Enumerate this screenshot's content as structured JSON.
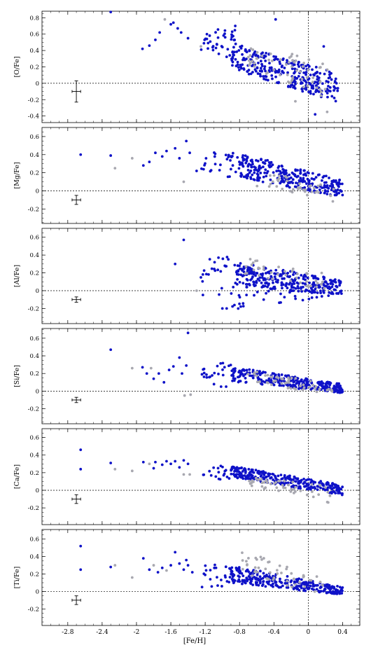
{
  "chart_data": {
    "type": "scatter",
    "xlabel": "[Fe/H]",
    "xlim": [
      -3.1,
      0.6
    ],
    "x_ticks": [
      "-2.8",
      "-2.4",
      "-2",
      "-1.6",
      "-1.2",
      "-0.8",
      "-0.4",
      "0",
      "0.4"
    ],
    "reference_lines": {
      "x": 0,
      "y": 0
    },
    "series_colors": {
      "main": "#0f12c8",
      "secondary": "#a8a8b0"
    },
    "grid": false,
    "panels": [
      {
        "ylabel": "[O/Fe]",
        "ylim": [
          -0.48,
          0.88
        ],
        "y_ticks": [
          "-0.4",
          "-0.2",
          "0",
          "0.2",
          "0.4",
          "0.6",
          "0.8"
        ],
        "error_bar": {
          "x": -2.7,
          "y": -0.1,
          "dx": 0.05,
          "dy": 0.13
        }
      },
      {
        "ylabel": "[Mg/Fe]",
        "ylim": [
          -0.36,
          0.7
        ],
        "y_ticks": [
          "-0.2",
          "0",
          "0.2",
          "0.4",
          "0.6"
        ],
        "error_bar": {
          "x": -2.7,
          "y": -0.1,
          "dx": 0.05,
          "dy": 0.05
        }
      },
      {
        "ylabel": "[Al/Fe]",
        "ylim": [
          -0.37,
          0.7
        ],
        "y_ticks": [
          "-0.2",
          "0",
          "0.2",
          "0.4",
          "0.6"
        ],
        "error_bar": {
          "x": -2.7,
          "y": -0.1,
          "dx": 0.05,
          "dy": 0.03
        }
      },
      {
        "ylabel": "[Si/Fe]",
        "ylim": [
          -0.37,
          0.71
        ],
        "y_ticks": [
          "-0.2",
          "0",
          "0.2",
          "0.4",
          "0.6"
        ],
        "error_bar": {
          "x": -2.7,
          "y": -0.1,
          "dx": 0.05,
          "dy": 0.03
        }
      },
      {
        "ylabel": "[Ca/Fe]",
        "ylim": [
          -0.39,
          0.7
        ],
        "y_ticks": [
          "-0.2",
          "0",
          "0.2",
          "0.4",
          "0.6"
        ],
        "error_bar": {
          "x": -2.7,
          "y": -0.1,
          "dx": 0.05,
          "dy": 0.05
        }
      },
      {
        "ylabel": "[Ti/Fe]",
        "ylim": [
          -0.39,
          0.71
        ],
        "y_ticks": [
          "-0.2",
          "0",
          "0.2",
          "0.4",
          "0.6"
        ],
        "error_bar": {
          "x": -2.7,
          "y": -0.1,
          "dx": 0.05,
          "dy": 0.05
        }
      }
    ],
    "clusters": [
      {
        "panel": 0,
        "n": 290,
        "x": [
          -0.9,
          0.35
        ],
        "y0": [
          0.5,
          0.12
        ],
        "y1": [
          0.18,
          -0.24
        ],
        "color": "main"
      },
      {
        "panel": 0,
        "n": 40,
        "x": [
          -1.25,
          -0.85
        ],
        "y": [
          0.3,
          0.66
        ],
        "color": "main"
      },
      {
        "panel": 0,
        "n": 60,
        "x": [
          -0.7,
          0.25
        ],
        "y0": [
          0.45,
          0.3
        ],
        "y1": [
          0.2,
          -0.2
        ],
        "color": "secondary"
      },
      {
        "panel": 1,
        "n": 300,
        "x": [
          -0.8,
          0.4
        ],
        "y0": [
          0.42,
          0.12
        ],
        "y1": [
          0.15,
          -0.08
        ],
        "color": "main"
      },
      {
        "panel": 1,
        "n": 30,
        "x": [
          -1.25,
          -0.8
        ],
        "y": [
          0.15,
          0.45
        ],
        "color": "main"
      },
      {
        "panel": 1,
        "n": 40,
        "x": [
          -0.6,
          0.3
        ],
        "y0": [
          0.25,
          0.05
        ],
        "y1": [
          0.05,
          -0.12
        ],
        "color": "secondary"
      },
      {
        "panel": 2,
        "n": 280,
        "x": [
          -0.85,
          0.4
        ],
        "y0": [
          0.32,
          0.12
        ],
        "y1": [
          0.05,
          -0.05
        ],
        "color": "main"
      },
      {
        "panel": 2,
        "n": 25,
        "x": [
          -1.25,
          -0.85
        ],
        "y": [
          -0.05,
          0.38
        ],
        "color": "main"
      },
      {
        "panel": 2,
        "n": 40,
        "x": [
          -0.9,
          0.35
        ],
        "y0": [
          -0.22,
          -0.05
        ],
        "y1": [
          -0.02,
          0.08
        ],
        "color": "main"
      },
      {
        "panel": 2,
        "n": 40,
        "x": [
          -0.8,
          0.2
        ],
        "y0": [
          0.38,
          0.2
        ],
        "y1": [
          0.2,
          0.0
        ],
        "color": "secondary"
      },
      {
        "panel": 3,
        "n": 280,
        "x": [
          -0.9,
          0.4
        ],
        "y0": [
          0.28,
          0.08
        ],
        "y1": [
          0.1,
          -0.02
        ],
        "color": "main"
      },
      {
        "panel": 3,
        "n": 25,
        "x": [
          -1.25,
          -0.85
        ],
        "y": [
          0.05,
          0.32
        ],
        "color": "main"
      },
      {
        "panel": 3,
        "n": 50,
        "x": [
          -0.8,
          0.3
        ],
        "y0": [
          0.25,
          0.08
        ],
        "y1": [
          0.12,
          -0.05
        ],
        "color": "secondary"
      },
      {
        "panel": 4,
        "n": 290,
        "x": [
          -0.9,
          0.4
        ],
        "y0": [
          0.28,
          0.06
        ],
        "y1": [
          0.15,
          -0.06
        ],
        "color": "main"
      },
      {
        "panel": 4,
        "n": 25,
        "x": [
          -1.25,
          -0.85
        ],
        "y": [
          0.12,
          0.3
        ],
        "color": "main"
      },
      {
        "panel": 4,
        "n": 50,
        "x": [
          -0.7,
          0.3
        ],
        "y0": [
          0.15,
          0.05
        ],
        "y1": [
          0.05,
          -0.16
        ],
        "color": "secondary"
      },
      {
        "panel": 5,
        "n": 290,
        "x": [
          -0.9,
          0.4
        ],
        "y0": [
          0.3,
          0.05
        ],
        "y1": [
          0.1,
          -0.04
        ],
        "color": "main"
      },
      {
        "panel": 5,
        "n": 25,
        "x": [
          -1.25,
          -0.85
        ],
        "y": [
          0.05,
          0.32
        ],
        "color": "main"
      },
      {
        "panel": 5,
        "n": 50,
        "x": [
          -0.8,
          0.2
        ],
        "y0": [
          0.48,
          0.15
        ],
        "y1": [
          0.2,
          -0.05
        ],
        "color": "secondary"
      }
    ],
    "points": [
      {
        "panel": 0,
        "x": -2.3,
        "y": 0.87,
        "c": "main"
      },
      {
        "panel": 0,
        "x": -1.93,
        "y": 0.42,
        "c": "main"
      },
      {
        "panel": 0,
        "x": -1.85,
        "y": 0.46,
        "c": "main"
      },
      {
        "panel": 0,
        "x": -1.78,
        "y": 0.53,
        "c": "main"
      },
      {
        "panel": 0,
        "x": -1.73,
        "y": 0.62,
        "c": "main"
      },
      {
        "panel": 0,
        "x": -1.67,
        "y": 0.78,
        "c": "secondary"
      },
      {
        "panel": 0,
        "x": -1.6,
        "y": 0.72,
        "c": "main"
      },
      {
        "panel": 0,
        "x": -1.57,
        "y": 0.74,
        "c": "main"
      },
      {
        "panel": 0,
        "x": -1.52,
        "y": 0.67,
        "c": "main"
      },
      {
        "panel": 0,
        "x": -1.48,
        "y": 0.62,
        "c": "main"
      },
      {
        "panel": 0,
        "x": -1.4,
        "y": 0.55,
        "c": "main"
      },
      {
        "panel": 0,
        "x": -1.25,
        "y": 0.45,
        "c": "secondary"
      },
      {
        "panel": 0,
        "x": -1.18,
        "y": 0.6,
        "c": "main"
      },
      {
        "panel": 0,
        "x": -0.85,
        "y": 0.7,
        "c": "main"
      },
      {
        "panel": 0,
        "x": -0.38,
        "y": 0.78,
        "c": "main"
      },
      {
        "panel": 0,
        "x": 0.18,
        "y": 0.45,
        "c": "main"
      },
      {
        "panel": 0,
        "x": 0.08,
        "y": -0.38,
        "c": "main"
      },
      {
        "panel": 0,
        "x": -0.15,
        "y": -0.22,
        "c": "secondary"
      },
      {
        "panel": 0,
        "x": 0.22,
        "y": -0.35,
        "c": "secondary"
      },
      {
        "panel": 1,
        "x": -2.65,
        "y": 0.4,
        "c": "main"
      },
      {
        "panel": 1,
        "x": -2.3,
        "y": 0.39,
        "c": "main"
      },
      {
        "panel": 1,
        "x": -2.25,
        "y": 0.25,
        "c": "secondary"
      },
      {
        "panel": 1,
        "x": -2.05,
        "y": 0.36,
        "c": "secondary"
      },
      {
        "panel": 1,
        "x": -1.92,
        "y": 0.28,
        "c": "main"
      },
      {
        "panel": 1,
        "x": -1.85,
        "y": 0.32,
        "c": "main"
      },
      {
        "panel": 1,
        "x": -1.78,
        "y": 0.42,
        "c": "main"
      },
      {
        "panel": 1,
        "x": -1.7,
        "y": 0.38,
        "c": "main"
      },
      {
        "panel": 1,
        "x": -1.65,
        "y": 0.44,
        "c": "main"
      },
      {
        "panel": 1,
        "x": -1.55,
        "y": 0.47,
        "c": "main"
      },
      {
        "panel": 1,
        "x": -1.5,
        "y": 0.36,
        "c": "main"
      },
      {
        "panel": 1,
        "x": -1.45,
        "y": 0.1,
        "c": "secondary"
      },
      {
        "panel": 1,
        "x": -1.42,
        "y": 0.55,
        "c": "main"
      },
      {
        "panel": 1,
        "x": -1.38,
        "y": 0.42,
        "c": "main"
      },
      {
        "panel": 1,
        "x": -1.3,
        "y": 0.22,
        "c": "main"
      },
      {
        "panel": 2,
        "x": -1.45,
        "y": 0.57,
        "c": "main"
      },
      {
        "panel": 2,
        "x": -1.55,
        "y": 0.3,
        "c": "main"
      },
      {
        "panel": 2,
        "x": -1.0,
        "y": -0.2,
        "c": "main"
      },
      {
        "panel": 2,
        "x": -0.95,
        "y": -0.2,
        "c": "main"
      },
      {
        "panel": 2,
        "x": -1.3,
        "y": 0.0,
        "c": "secondary"
      },
      {
        "panel": 3,
        "x": -2.3,
        "y": 0.47,
        "c": "main"
      },
      {
        "panel": 3,
        "x": -2.05,
        "y": 0.26,
        "c": "secondary"
      },
      {
        "panel": 3,
        "x": -1.93,
        "y": 0.27,
        "c": "main"
      },
      {
        "panel": 3,
        "x": -1.88,
        "y": 0.2,
        "c": "main"
      },
      {
        "panel": 3,
        "x": -1.83,
        "y": 0.26,
        "c": "secondary"
      },
      {
        "panel": 3,
        "x": -1.8,
        "y": 0.14,
        "c": "main"
      },
      {
        "panel": 3,
        "x": -1.74,
        "y": 0.2,
        "c": "main"
      },
      {
        "panel": 3,
        "x": -1.68,
        "y": 0.1,
        "c": "main"
      },
      {
        "panel": 3,
        "x": -1.62,
        "y": 0.24,
        "c": "main"
      },
      {
        "panel": 3,
        "x": -1.57,
        "y": 0.28,
        "c": "main"
      },
      {
        "panel": 3,
        "x": -1.5,
        "y": 0.38,
        "c": "main"
      },
      {
        "panel": 3,
        "x": -1.47,
        "y": 0.2,
        "c": "main"
      },
      {
        "panel": 3,
        "x": -1.44,
        "y": -0.05,
        "c": "secondary"
      },
      {
        "panel": 3,
        "x": -1.42,
        "y": 0.29,
        "c": "main"
      },
      {
        "panel": 3,
        "x": -1.4,
        "y": 0.66,
        "c": "main"
      },
      {
        "panel": 3,
        "x": -1.37,
        "y": -0.04,
        "c": "secondary"
      },
      {
        "panel": 4,
        "x": -2.65,
        "y": 0.46,
        "c": "main"
      },
      {
        "panel": 4,
        "x": -2.65,
        "y": 0.24,
        "c": "main"
      },
      {
        "panel": 4,
        "x": -2.3,
        "y": 0.31,
        "c": "main"
      },
      {
        "panel": 4,
        "x": -2.25,
        "y": 0.24,
        "c": "secondary"
      },
      {
        "panel": 4,
        "x": -2.05,
        "y": 0.22,
        "c": "secondary"
      },
      {
        "panel": 4,
        "x": -1.92,
        "y": 0.32,
        "c": "main"
      },
      {
        "panel": 4,
        "x": -1.85,
        "y": 0.3,
        "c": "secondary"
      },
      {
        "panel": 4,
        "x": -1.8,
        "y": 0.25,
        "c": "main"
      },
      {
        "panel": 4,
        "x": -1.78,
        "y": 0.32,
        "c": "main"
      },
      {
        "panel": 4,
        "x": -1.7,
        "y": 0.29,
        "c": "main"
      },
      {
        "panel": 4,
        "x": -1.65,
        "y": 0.33,
        "c": "main"
      },
      {
        "panel": 4,
        "x": -1.6,
        "y": 0.3,
        "c": "main"
      },
      {
        "panel": 4,
        "x": -1.55,
        "y": 0.33,
        "c": "main"
      },
      {
        "panel": 4,
        "x": -1.5,
        "y": 0.26,
        "c": "main"
      },
      {
        "panel": 4,
        "x": -1.45,
        "y": 0.34,
        "c": "main"
      },
      {
        "panel": 4,
        "x": -1.45,
        "y": 0.18,
        "c": "secondary"
      },
      {
        "panel": 4,
        "x": -1.4,
        "y": 0.3,
        "c": "main"
      },
      {
        "panel": 4,
        "x": -1.38,
        "y": 0.18,
        "c": "secondary"
      },
      {
        "panel": 5,
        "x": -2.65,
        "y": 0.52,
        "c": "main"
      },
      {
        "panel": 5,
        "x": -2.65,
        "y": 0.25,
        "c": "main"
      },
      {
        "panel": 5,
        "x": -2.3,
        "y": 0.28,
        "c": "main"
      },
      {
        "panel": 5,
        "x": -2.25,
        "y": 0.3,
        "c": "secondary"
      },
      {
        "panel": 5,
        "x": -2.05,
        "y": 0.16,
        "c": "secondary"
      },
      {
        "panel": 5,
        "x": -1.92,
        "y": 0.38,
        "c": "main"
      },
      {
        "panel": 5,
        "x": -1.85,
        "y": 0.25,
        "c": "main"
      },
      {
        "panel": 5,
        "x": -1.8,
        "y": 0.3,
        "c": "secondary"
      },
      {
        "panel": 5,
        "x": -1.75,
        "y": 0.22,
        "c": "main"
      },
      {
        "panel": 5,
        "x": -1.7,
        "y": 0.27,
        "c": "main"
      },
      {
        "panel": 5,
        "x": -1.65,
        "y": 0.24,
        "c": "secondary"
      },
      {
        "panel": 5,
        "x": -1.6,
        "y": 0.3,
        "c": "main"
      },
      {
        "panel": 5,
        "x": -1.55,
        "y": 0.45,
        "c": "main"
      },
      {
        "panel": 5,
        "x": -1.5,
        "y": 0.32,
        "c": "main"
      },
      {
        "panel": 5,
        "x": -1.45,
        "y": 0.25,
        "c": "main"
      },
      {
        "panel": 5,
        "x": -1.42,
        "y": 0.36,
        "c": "main"
      },
      {
        "panel": 5,
        "x": -1.4,
        "y": 0.3,
        "c": "main"
      },
      {
        "panel": 5,
        "x": -1.35,
        "y": 0.22,
        "c": "main"
      }
    ]
  }
}
